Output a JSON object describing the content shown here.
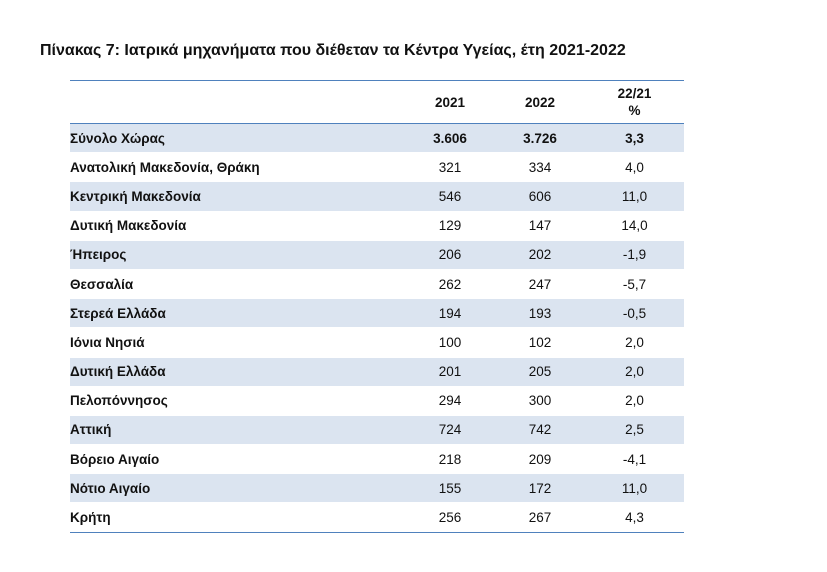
{
  "title": "Πίνακας 7: Ιατρικά μηχανήματα που διέθεταν τα Κέντρα Υγείας, έτη 2021-2022",
  "headers": {
    "region": "",
    "y2021": "2021",
    "y2022": "2022",
    "pct_line1": "22/21",
    "pct_line2": "%"
  },
  "rows": [
    {
      "region": "Σύνολο Χώρας",
      "y2021": "3.606",
      "y2022": "3.726",
      "pct": "3,3"
    },
    {
      "region": "Ανατολική Μακεδονία, Θράκη",
      "y2021": "321",
      "y2022": "334",
      "pct": "4,0"
    },
    {
      "region": "Κεντρική Μακεδονία",
      "y2021": "546",
      "y2022": "606",
      "pct": "11,0"
    },
    {
      "region": "Δυτική Μακεδονία",
      "y2021": "129",
      "y2022": "147",
      "pct": "14,0"
    },
    {
      "region": "Ήπειρος",
      "y2021": "206",
      "y2022": "202",
      "pct": "-1,9"
    },
    {
      "region": "Θεσσαλία",
      "y2021": "262",
      "y2022": "247",
      "pct": "-5,7"
    },
    {
      "region": "Στερεά Ελλάδα",
      "y2021": "194",
      "y2022": "193",
      "pct": "-0,5"
    },
    {
      "region": "Ιόνια Νησιά",
      "y2021": "100",
      "y2022": "102",
      "pct": "2,0"
    },
    {
      "region": "Δυτική Ελλάδα",
      "y2021": "201",
      "y2022": "205",
      "pct": "2,0"
    },
    {
      "region": "Πελοπόννησος",
      "y2021": "294",
      "y2022": "300",
      "pct": "2,0"
    },
    {
      "region": "Αττική",
      "y2021": "724",
      "y2022": "742",
      "pct": "2,5"
    },
    {
      "region": "Βόρειο Αιγαίο",
      "y2021": "218",
      "y2022": "209",
      "pct": "-4,1"
    },
    {
      "region": "Νότιο Αιγαίο",
      "y2021": "155",
      "y2022": "172",
      "pct": "11,0"
    },
    {
      "region": "Κρήτη",
      "y2021": "256",
      "y2022": "267",
      "pct": "4,3"
    }
  ],
  "colors": {
    "rule": "#4f81bd",
    "shade": "#dbe4f0"
  }
}
